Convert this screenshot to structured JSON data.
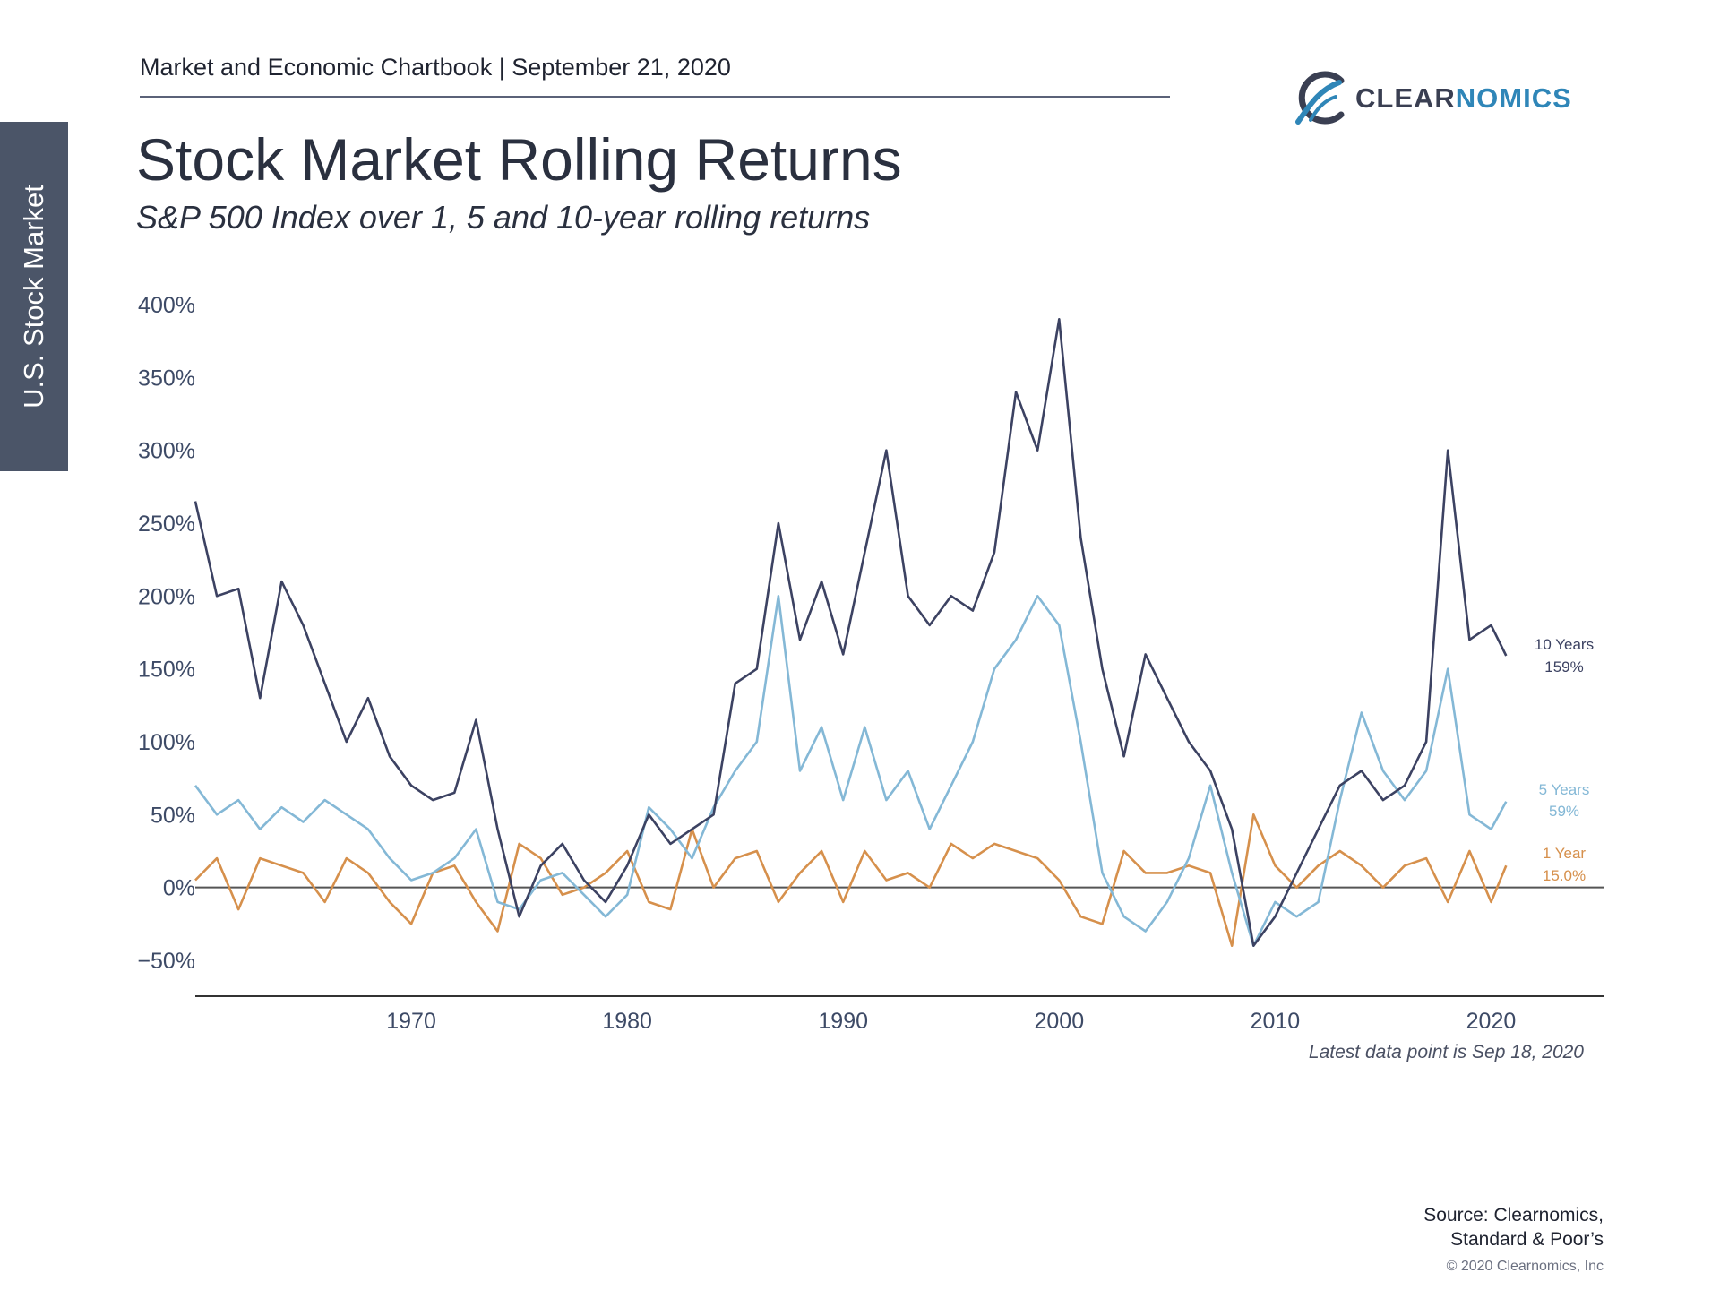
{
  "header": {
    "chartbook_line": "Market and Economic Chartbook | September 21, 2020"
  },
  "side_tab": {
    "label": "U.S. Stock Market"
  },
  "logo": {
    "icon": "clearnomics-swirl-icon",
    "text_a": "CLEAR",
    "text_b": "NOMICS"
  },
  "title": "Stock Market Rolling Returns",
  "subtitle": "S&P 500 Index over 1, 5 and 10-year rolling returns",
  "note": "Latest data point is Sep 18, 2020",
  "source": {
    "line1": "Source: Clearnomics,",
    "line2": "Standard & Poor’s"
  },
  "copyright": "© 2020 Clearnomics, Inc",
  "colors": {
    "ten_year": "#3c4262",
    "five_year": "#84b8d6",
    "one_year": "#d6904c",
    "axis": "#3d4a66",
    "zero_line": "#555555"
  },
  "chart_data": {
    "type": "line",
    "title": "",
    "xlabel": "",
    "ylabel": "",
    "xlim": [
      1960,
      2025
    ],
    "ylim": [
      -50,
      400
    ],
    "grid": false,
    "y_ticks": [
      {
        "value": -50,
        "label": "−50%"
      },
      {
        "value": 0,
        "label": "0%"
      },
      {
        "value": 50,
        "label": "50%"
      },
      {
        "value": 100,
        "label": "100%"
      },
      {
        "value": 150,
        "label": "150%"
      },
      {
        "value": 200,
        "label": "200%"
      },
      {
        "value": 250,
        "label": "250%"
      },
      {
        "value": 300,
        "label": "300%"
      },
      {
        "value": 350,
        "label": "350%"
      },
      {
        "value": 400,
        "label": "400%"
      }
    ],
    "x_ticks": [
      {
        "value": 1970,
        "label": "1970"
      },
      {
        "value": 1980,
        "label": "1980"
      },
      {
        "value": 1990,
        "label": "1990"
      },
      {
        "value": 2000,
        "label": "2000"
      },
      {
        "value": 2010,
        "label": "2010"
      },
      {
        "value": 2020,
        "label": "2020"
      }
    ],
    "series": [
      {
        "name": "10 Years",
        "end_label": "159%",
        "color_key": "ten_year",
        "points": [
          [
            1960,
            265
          ],
          [
            1961,
            200
          ],
          [
            1962,
            205
          ],
          [
            1963,
            130
          ],
          [
            1964,
            210
          ],
          [
            1965,
            180
          ],
          [
            1966,
            140
          ],
          [
            1967,
            100
          ],
          [
            1968,
            130
          ],
          [
            1969,
            90
          ],
          [
            1970,
            70
          ],
          [
            1971,
            60
          ],
          [
            1972,
            65
          ],
          [
            1973,
            115
          ],
          [
            1974,
            40
          ],
          [
            1975,
            -20
          ],
          [
            1976,
            15
          ],
          [
            1977,
            30
          ],
          [
            1978,
            5
          ],
          [
            1979,
            -10
          ],
          [
            1980,
            15
          ],
          [
            1981,
            50
          ],
          [
            1982,
            30
          ],
          [
            1983,
            40
          ],
          [
            1984,
            50
          ],
          [
            1985,
            140
          ],
          [
            1986,
            150
          ],
          [
            1987,
            250
          ],
          [
            1988,
            170
          ],
          [
            1989,
            210
          ],
          [
            1990,
            160
          ],
          [
            1991,
            230
          ],
          [
            1992,
            300
          ],
          [
            1993,
            200
          ],
          [
            1994,
            180
          ],
          [
            1995,
            200
          ],
          [
            1996,
            190
          ],
          [
            1997,
            230
          ],
          [
            1998,
            340
          ],
          [
            1999,
            300
          ],
          [
            2000,
            390
          ],
          [
            2001,
            240
          ],
          [
            2002,
            150
          ],
          [
            2003,
            90
          ],
          [
            2004,
            160
          ],
          [
            2005,
            130
          ],
          [
            2006,
            100
          ],
          [
            2007,
            80
          ],
          [
            2008,
            40
          ],
          [
            2009,
            -40
          ],
          [
            2010,
            -20
          ],
          [
            2011,
            10
          ],
          [
            2012,
            40
          ],
          [
            2013,
            70
          ],
          [
            2014,
            80
          ],
          [
            2015,
            60
          ],
          [
            2016,
            70
          ],
          [
            2017,
            100
          ],
          [
            2018,
            300
          ],
          [
            2019,
            170
          ],
          [
            2020,
            180
          ],
          [
            2020.7,
            159
          ]
        ]
      },
      {
        "name": "5 Years",
        "end_label": "59%",
        "color_key": "five_year",
        "points": [
          [
            1960,
            70
          ],
          [
            1961,
            50
          ],
          [
            1962,
            60
          ],
          [
            1963,
            40
          ],
          [
            1964,
            55
          ],
          [
            1965,
            45
          ],
          [
            1966,
            60
          ],
          [
            1967,
            50
          ],
          [
            1968,
            40
          ],
          [
            1969,
            20
          ],
          [
            1970,
            5
          ],
          [
            1971,
            10
          ],
          [
            1972,
            20
          ],
          [
            1973,
            40
          ],
          [
            1974,
            -10
          ],
          [
            1975,
            -15
          ],
          [
            1976,
            5
          ],
          [
            1977,
            10
          ],
          [
            1978,
            -5
          ],
          [
            1979,
            -20
          ],
          [
            1980,
            -5
          ],
          [
            1981,
            55
          ],
          [
            1982,
            40
          ],
          [
            1983,
            20
          ],
          [
            1984,
            55
          ],
          [
            1985,
            80
          ],
          [
            1986,
            100
          ],
          [
            1987,
            200
          ],
          [
            1988,
            80
          ],
          [
            1989,
            110
          ],
          [
            1990,
            60
          ],
          [
            1991,
            110
          ],
          [
            1992,
            60
          ],
          [
            1993,
            80
          ],
          [
            1994,
            40
          ],
          [
            1995,
            70
          ],
          [
            1996,
            100
          ],
          [
            1997,
            150
          ],
          [
            1998,
            170
          ],
          [
            1999,
            200
          ],
          [
            2000,
            180
          ],
          [
            2001,
            100
          ],
          [
            2002,
            10
          ],
          [
            2003,
            -20
          ],
          [
            2004,
            -30
          ],
          [
            2005,
            -10
          ],
          [
            2006,
            20
          ],
          [
            2007,
            70
          ],
          [
            2008,
            10
          ],
          [
            2009,
            -40
          ],
          [
            2010,
            -10
          ],
          [
            2011,
            -20
          ],
          [
            2012,
            -10
          ],
          [
            2013,
            60
          ],
          [
            2014,
            120
          ],
          [
            2015,
            80
          ],
          [
            2016,
            60
          ],
          [
            2017,
            80
          ],
          [
            2018,
            150
          ],
          [
            2019,
            50
          ],
          [
            2020,
            40
          ],
          [
            2020.7,
            59
          ]
        ]
      },
      {
        "name": "1 Year",
        "end_label": "15.0%",
        "color_key": "one_year",
        "points": [
          [
            1960,
            5
          ],
          [
            1961,
            20
          ],
          [
            1962,
            -15
          ],
          [
            1963,
            20
          ],
          [
            1964,
            15
          ],
          [
            1965,
            10
          ],
          [
            1966,
            -10
          ],
          [
            1967,
            20
          ],
          [
            1968,
            10
          ],
          [
            1969,
            -10
          ],
          [
            1970,
            -25
          ],
          [
            1971,
            10
          ],
          [
            1972,
            15
          ],
          [
            1973,
            -10
          ],
          [
            1974,
            -30
          ],
          [
            1975,
            30
          ],
          [
            1976,
            20
          ],
          [
            1977,
            -5
          ],
          [
            1978,
            0
          ],
          [
            1979,
            10
          ],
          [
            1980,
            25
          ],
          [
            1981,
            -10
          ],
          [
            1982,
            -15
          ],
          [
            1983,
            40
          ],
          [
            1984,
            0
          ],
          [
            1985,
            20
          ],
          [
            1986,
            25
          ],
          [
            1987,
            -10
          ],
          [
            1988,
            10
          ],
          [
            1989,
            25
          ],
          [
            1990,
            -10
          ],
          [
            1991,
            25
          ],
          [
            1992,
            5
          ],
          [
            1993,
            10
          ],
          [
            1994,
            0
          ],
          [
            1995,
            30
          ],
          [
            1996,
            20
          ],
          [
            1997,
            30
          ],
          [
            1998,
            25
          ],
          [
            1999,
            20
          ],
          [
            2000,
            5
          ],
          [
            2001,
            -20
          ],
          [
            2002,
            -25
          ],
          [
            2003,
            25
          ],
          [
            2004,
            10
          ],
          [
            2005,
            10
          ],
          [
            2006,
            15
          ],
          [
            2007,
            10
          ],
          [
            2008,
            -40
          ],
          [
            2009,
            50
          ],
          [
            2010,
            15
          ],
          [
            2011,
            0
          ],
          [
            2012,
            15
          ],
          [
            2013,
            25
          ],
          [
            2014,
            15
          ],
          [
            2015,
            0
          ],
          [
            2016,
            15
          ],
          [
            2017,
            20
          ],
          [
            2018,
            -10
          ],
          [
            2019,
            25
          ],
          [
            2020,
            -10
          ],
          [
            2020.7,
            15
          ]
        ]
      }
    ]
  }
}
